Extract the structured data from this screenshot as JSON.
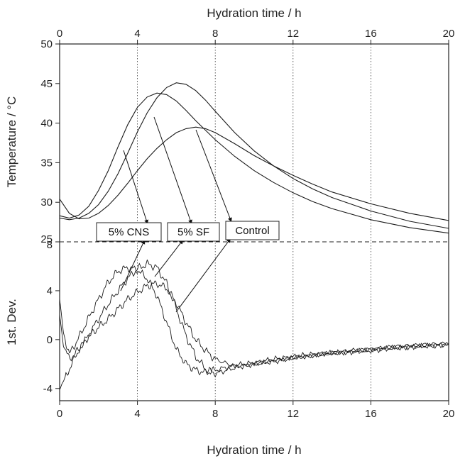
{
  "chart_data": {
    "type": "line",
    "x_top_label": "Hydration time / h",
    "x_bottom_label": "Hydration time / h",
    "xlim": [
      0,
      20
    ],
    "x_ticks": [
      0,
      4,
      8,
      12,
      16,
      20
    ],
    "vertical_grid": [
      4,
      8,
      12,
      16
    ],
    "upper": {
      "ylabel": "Temperature / °C",
      "ylim": [
        25,
        50
      ],
      "y_ticks": [
        25,
        30,
        35,
        40,
        45,
        50
      ],
      "series": [
        {
          "name": "5% CNS",
          "x": [
            0,
            0.5,
            1,
            1.5,
            2,
            2.5,
            3,
            3.5,
            4,
            4.5,
            5,
            5.5,
            6,
            6.5,
            7,
            7.5,
            8,
            9,
            10,
            11,
            12,
            13,
            14,
            16,
            18,
            20
          ],
          "y": [
            28.3,
            28.0,
            28.4,
            29.5,
            31.5,
            34.0,
            37.0,
            39.8,
            42.0,
            43.3,
            43.8,
            43.6,
            42.8,
            41.6,
            40.3,
            39.1,
            37.9,
            35.8,
            34.0,
            32.5,
            31.2,
            30.1,
            29.2,
            27.8,
            26.8,
            26.1
          ]
        },
        {
          "name": "5% SF",
          "x": [
            0,
            0.5,
            1,
            1.5,
            2,
            2.5,
            3,
            3.5,
            4,
            4.5,
            5,
            5.5,
            6,
            6.5,
            7,
            7.5,
            8,
            9,
            10,
            11,
            12,
            13,
            14,
            16,
            18,
            20
          ],
          "y": [
            28.0,
            27.8,
            28.0,
            28.6,
            29.7,
            31.4,
            33.6,
            36.2,
            38.9,
            41.3,
            43.2,
            44.5,
            45.1,
            44.9,
            44.1,
            42.9,
            41.5,
            38.8,
            36.5,
            34.6,
            33.0,
            31.7,
            30.6,
            28.9,
            27.6,
            26.7
          ]
        },
        {
          "name": "Control",
          "x": [
            0,
            0.5,
            1,
            1.5,
            2,
            2.5,
            3,
            3.5,
            4,
            4.5,
            5,
            5.5,
            6,
            6.5,
            7,
            7.5,
            8,
            9,
            10,
            11,
            12,
            13,
            14,
            16,
            18,
            20
          ],
          "y": [
            30.4,
            28.6,
            27.9,
            28.0,
            28.6,
            29.6,
            30.9,
            32.4,
            34.0,
            35.5,
            36.8,
            37.9,
            38.8,
            39.3,
            39.5,
            39.3,
            38.8,
            37.4,
            35.9,
            34.6,
            33.4,
            32.3,
            31.3,
            29.8,
            28.6,
            27.7
          ]
        }
      ]
    },
    "lower": {
      "ylabel": "1st. Dev.",
      "ylim": [
        -5,
        8
      ],
      "y_ticks": [
        -4,
        0,
        4,
        8
      ],
      "series": [
        {
          "name": "5% CNS",
          "x": [
            0,
            0.2,
            0.5,
            1,
            1.5,
            2,
            2.5,
            3,
            3.5,
            4,
            4.5,
            5,
            5.5,
            6,
            6.5,
            7,
            7.5,
            8,
            9,
            10,
            11,
            12,
            13,
            14,
            15,
            16,
            17,
            18,
            19,
            20
          ],
          "y": [
            3.3,
            0.5,
            -1.2,
            0.2,
            1.8,
            3.3,
            4.7,
            5.6,
            5.9,
            5.7,
            5.0,
            3.6,
            1.4,
            -0.8,
            -2.0,
            -2.5,
            -2.7,
            -2.5,
            -2.1,
            -1.9,
            -1.6,
            -1.4,
            -1.2,
            -1.1,
            -1.0,
            -0.9,
            -0.7,
            -0.6,
            -0.5,
            -0.4
          ]
        },
        {
          "name": "5% SF",
          "x": [
            0,
            0.2,
            0.5,
            1,
            1.5,
            2,
            2.5,
            3,
            3.5,
            4,
            4.5,
            5,
            5.5,
            6,
            6.5,
            7,
            7.5,
            8,
            9,
            10,
            11,
            12,
            13,
            14,
            15,
            16,
            17,
            18,
            19,
            20
          ],
          "y": [
            2.0,
            -0.5,
            -1.6,
            -0.8,
            0.4,
            1.7,
            2.9,
            4.0,
            5.0,
            5.8,
            6.2,
            5.9,
            4.6,
            2.5,
            0.3,
            -1.4,
            -2.4,
            -2.8,
            -2.3,
            -2.0,
            -1.8,
            -1.5,
            -1.3,
            -1.1,
            -0.9,
            -0.8,
            -0.6,
            -0.5,
            -0.4,
            -0.3
          ]
        },
        {
          "name": "Control",
          "x": [
            0,
            0.2,
            0.5,
            1,
            1.5,
            2,
            2.5,
            3,
            3.5,
            4,
            4.5,
            5,
            5.5,
            6,
            6.5,
            7,
            7.5,
            8,
            9,
            10,
            11,
            12,
            13,
            14,
            15,
            16,
            17,
            18,
            19,
            20
          ],
          "y": [
            -4.0,
            -3.4,
            -2.4,
            -0.8,
            0.3,
            1.0,
            1.7,
            2.5,
            3.3,
            3.9,
            4.4,
            4.6,
            4.2,
            3.0,
            1.4,
            0.0,
            -0.9,
            -1.6,
            -2.2,
            -2.0,
            -1.7,
            -1.5,
            -1.3,
            -1.1,
            -1.0,
            -0.8,
            -0.7,
            -0.6,
            -0.5,
            -0.4
          ]
        }
      ]
    },
    "annotations": [
      {
        "text": "5% CNS"
      },
      {
        "text": "5% SF"
      },
      {
        "text": "Control"
      }
    ]
  }
}
